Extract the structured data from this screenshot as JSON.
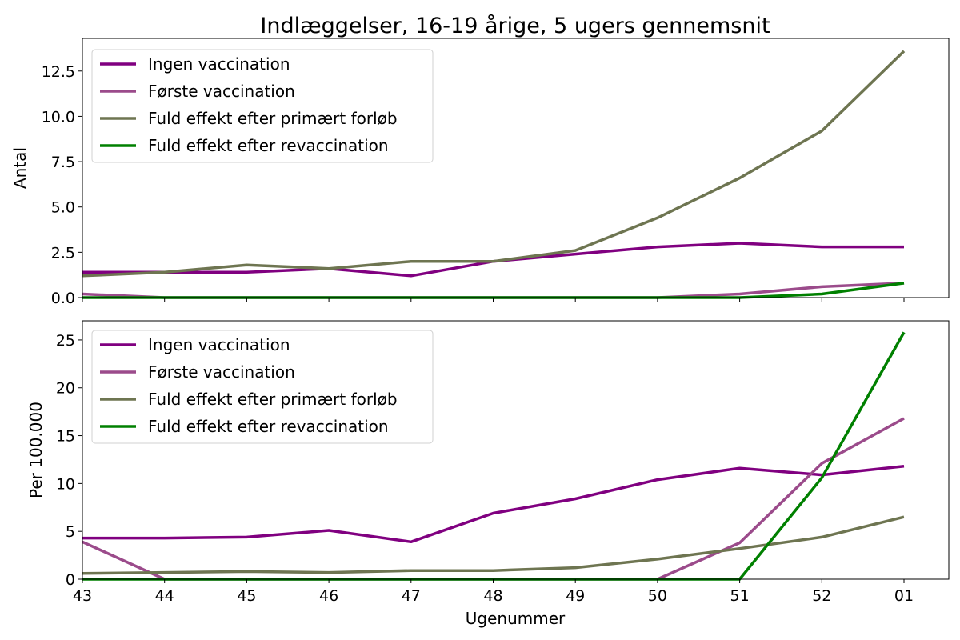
{
  "title": "Indlæggelser, 16-19 årige, 5 ugers gennemsnit",
  "xlabel": "Ugenummer",
  "colors": {
    "ingen": "#800080",
    "forste": "#9b4b8b",
    "fuld_primaert": "#6e7551",
    "fuld_revacc": "#008000"
  },
  "chart_data": [
    {
      "type": "line",
      "title": "Indlæggelser, 16-19 årige, 5 ugers gennemsnit",
      "xlabel": "",
      "ylabel": "Antal",
      "categories": [
        "43",
        "44",
        "45",
        "46",
        "47",
        "48",
        "49",
        "50",
        "51",
        "52",
        "01"
      ],
      "ylim": [
        0,
        14.3
      ],
      "yticks": [
        0.0,
        2.5,
        5.0,
        7.5,
        10.0,
        12.5
      ],
      "ytick_labels": [
        "0.0",
        "2.5",
        "5.0",
        "7.5",
        "10.0",
        "12.5"
      ],
      "legend_position": "top-left",
      "grid": false,
      "series": [
        {
          "name": "Ingen vaccination",
          "color": "#800080",
          "values": [
            1.4,
            1.4,
            1.4,
            1.6,
            1.2,
            2.0,
            2.4,
            2.8,
            3.0,
            2.8,
            2.8
          ]
        },
        {
          "name": "Første vaccination",
          "color": "#9b4b8b",
          "values": [
            0.2,
            0.0,
            0.0,
            0.0,
            0.0,
            0.0,
            0.0,
            0.0,
            0.2,
            0.6,
            0.8
          ]
        },
        {
          "name": "Fuld effekt efter primært forløb",
          "color": "#6e7551",
          "values": [
            1.2,
            1.4,
            1.8,
            1.6,
            2.0,
            2.0,
            2.6,
            4.4,
            6.6,
            9.2,
            13.6
          ]
        },
        {
          "name": "Fuld effekt efter revaccination",
          "color": "#008000",
          "values": [
            0.0,
            0.0,
            0.0,
            0.0,
            0.0,
            0.0,
            0.0,
            0.0,
            0.0,
            0.2,
            0.8
          ]
        }
      ]
    },
    {
      "type": "line",
      "title": "",
      "xlabel": "Ugenummer",
      "ylabel": "Per 100.000",
      "categories": [
        "43",
        "44",
        "45",
        "46",
        "47",
        "48",
        "49",
        "50",
        "51",
        "52",
        "01"
      ],
      "ylim": [
        0,
        27.0
      ],
      "yticks": [
        0,
        5,
        10,
        15,
        20,
        25
      ],
      "ytick_labels": [
        "0",
        "5",
        "10",
        "15",
        "20",
        "25"
      ],
      "legend_position": "top-left",
      "grid": false,
      "series": [
        {
          "name": "Ingen vaccination",
          "color": "#800080",
          "values": [
            4.3,
            4.3,
            4.4,
            5.1,
            3.9,
            6.9,
            8.4,
            10.4,
            11.6,
            10.9,
            11.8
          ]
        },
        {
          "name": "Første vaccination",
          "color": "#9b4b8b",
          "values": [
            3.9,
            0.0,
            0.0,
            0.0,
            0.0,
            0.0,
            0.0,
            0.0,
            3.8,
            12.1,
            16.8
          ]
        },
        {
          "name": "Fuld effekt efter primært forløb",
          "color": "#6e7551",
          "values": [
            0.6,
            0.7,
            0.8,
            0.7,
            0.9,
            0.9,
            1.2,
            2.1,
            3.2,
            4.4,
            6.5
          ]
        },
        {
          "name": "Fuld effekt efter revaccination",
          "color": "#008000",
          "values": [
            0.0,
            0.0,
            0.0,
            0.0,
            0.0,
            0.0,
            0.0,
            0.0,
            0.0,
            10.6,
            25.8
          ]
        }
      ]
    }
  ]
}
